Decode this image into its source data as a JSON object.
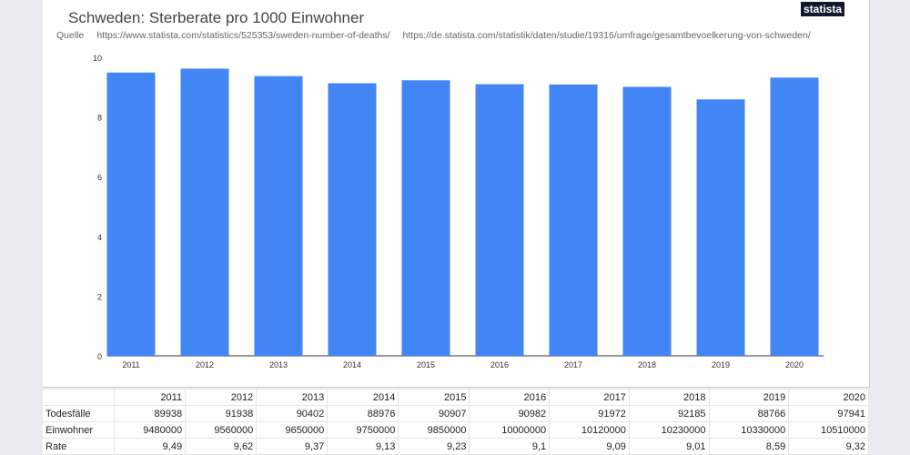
{
  "header": {
    "title": "Schweden: Sterberate pro 1000 Einwohner",
    "source_label": "Quelle",
    "sources": [
      "https://www.statista.com/statistics/525353/sweden-number-of-deaths/",
      "https://de.statista.com/statistik/daten/studie/19316/umfrage/gesamtbevoelkerung-von-schweden/"
    ],
    "logo": "statista"
  },
  "chart_data": {
    "type": "bar",
    "title": "Schweden: Sterberate pro 1000 Einwohner",
    "categories": [
      "2011",
      "2012",
      "2013",
      "2014",
      "2015",
      "2016",
      "2017",
      "2018",
      "2019",
      "2020"
    ],
    "values": [
      9.49,
      9.62,
      9.37,
      9.13,
      9.23,
      9.1,
      9.09,
      9.01,
      8.59,
      9.32
    ],
    "ylim": [
      0,
      10
    ],
    "yticks": [
      "0",
      "2",
      "4",
      "6",
      "8",
      "10"
    ],
    "bar_color": "#4285f4",
    "grid": false
  },
  "table": {
    "headers": [
      "",
      "2011",
      "2012",
      "2013",
      "2014",
      "2015",
      "2016",
      "2017",
      "2018",
      "2019",
      "2020"
    ],
    "rows": [
      [
        "Todesfälle",
        "89938",
        "91938",
        "90402",
        "88976",
        "90907",
        "90982",
        "91972",
        "92185",
        "88766",
        "97941"
      ],
      [
        "Einwohner",
        "9480000",
        "9560000",
        "9650000",
        "9750000",
        "9850000",
        "10000000",
        "10120000",
        "10230000",
        "10330000",
        "10510000"
      ],
      [
        "Rate",
        "9,49",
        "9,62",
        "9,37",
        "9,13",
        "9,23",
        "9,1",
        "9,09",
        "9,01",
        "8,59",
        "9,32"
      ]
    ]
  }
}
